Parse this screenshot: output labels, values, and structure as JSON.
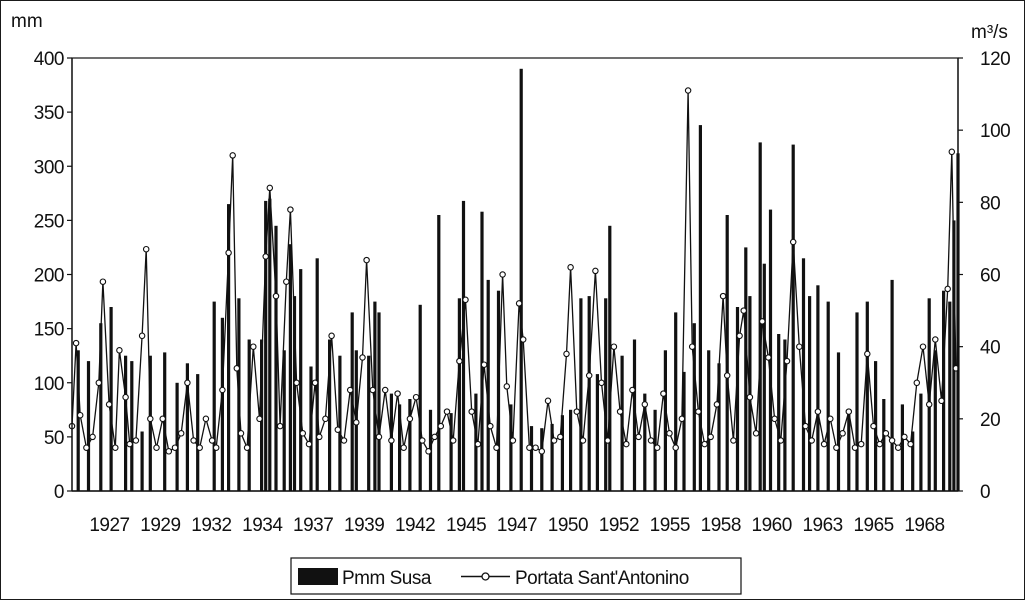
{
  "chart_data": {
    "type": "bar+line",
    "left_axis": {
      "unit": "mm",
      "min": 0,
      "max": 400,
      "ticks": [
        0,
        50,
        100,
        150,
        200,
        250,
        300,
        350,
        400
      ]
    },
    "right_axis": {
      "unit": "m³/s",
      "min": 0,
      "max": 120,
      "ticks": [
        0,
        20,
        40,
        60,
        80,
        100,
        120
      ]
    },
    "x_axis": {
      "min": 1927,
      "max": 1970,
      "tick_labels": [
        "1927",
        "1929",
        "1932",
        "1934",
        "1937",
        "1939",
        "1942",
        "1945",
        "1947",
        "1950",
        "1952",
        "1955",
        "1958",
        "1960",
        "1963",
        "1965",
        "1968"
      ]
    },
    "legend": {
      "position": "bottom"
    },
    "series": [
      {
        "name": "Pmm Susa",
        "axis": "left",
        "style": "bars",
        "color": "#111111",
        "points": [
          [
            1927.3,
            130
          ],
          [
            1927.8,
            120
          ],
          [
            1928.4,
            155
          ],
          [
            1928.9,
            170
          ],
          [
            1929.6,
            125
          ],
          [
            1929.9,
            120
          ],
          [
            1930.4,
            55
          ],
          [
            1930.8,
            125
          ],
          [
            1931.5,
            128
          ],
          [
            1932.1,
            100
          ],
          [
            1932.6,
            118
          ],
          [
            1933.1,
            108
          ],
          [
            1933.9,
            175
          ],
          [
            1934.3,
            160
          ],
          [
            1934.6,
            265
          ],
          [
            1935.1,
            178
          ],
          [
            1935.6,
            140
          ],
          [
            1936.2,
            140
          ],
          [
            1936.4,
            268
          ],
          [
            1936.6,
            270
          ],
          [
            1936.9,
            245
          ],
          [
            1937.3,
            130
          ],
          [
            1937.6,
            228
          ],
          [
            1937.8,
            180
          ],
          [
            1938.1,
            205
          ],
          [
            1938.6,
            115
          ],
          [
            1938.9,
            215
          ],
          [
            1939.5,
            140
          ],
          [
            1940.0,
            125
          ],
          [
            1940.6,
            165
          ],
          [
            1940.8,
            130
          ],
          [
            1941.4,
            125
          ],
          [
            1941.7,
            175
          ],
          [
            1941.9,
            165
          ],
          [
            1942.5,
            90
          ],
          [
            1942.9,
            80
          ],
          [
            1943.4,
            85
          ],
          [
            1943.9,
            172
          ],
          [
            1944.4,
            75
          ],
          [
            1944.8,
            255
          ],
          [
            1945.4,
            72
          ],
          [
            1945.8,
            178
          ],
          [
            1946.0,
            268
          ],
          [
            1946.6,
            90
          ],
          [
            1946.9,
            258
          ],
          [
            1947.2,
            195
          ],
          [
            1947.7,
            185
          ],
          [
            1948.3,
            80
          ],
          [
            1948.8,
            390
          ],
          [
            1949.3,
            60
          ],
          [
            1949.8,
            58
          ],
          [
            1950.3,
            62
          ],
          [
            1950.8,
            70
          ],
          [
            1951.2,
            75
          ],
          [
            1951.7,
            178
          ],
          [
            1952.1,
            180
          ],
          [
            1952.5,
            108
          ],
          [
            1952.9,
            178
          ],
          [
            1953.1,
            245
          ],
          [
            1953.7,
            125
          ],
          [
            1954.3,
            140
          ],
          [
            1954.8,
            90
          ],
          [
            1955.3,
            75
          ],
          [
            1955.8,
            130
          ],
          [
            1956.3,
            165
          ],
          [
            1956.7,
            110
          ],
          [
            1957.2,
            155
          ],
          [
            1957.5,
            338
          ],
          [
            1957.9,
            130
          ],
          [
            1958.4,
            118
          ],
          [
            1958.8,
            255
          ],
          [
            1959.3,
            170
          ],
          [
            1959.7,
            225
          ],
          [
            1959.9,
            180
          ],
          [
            1960.4,
            322
          ],
          [
            1960.6,
            210
          ],
          [
            1960.9,
            260
          ],
          [
            1961.3,
            145
          ],
          [
            1961.6,
            140
          ],
          [
            1962.0,
            320
          ],
          [
            1962.5,
            215
          ],
          [
            1962.8,
            180
          ],
          [
            1963.2,
            190
          ],
          [
            1963.7,
            175
          ],
          [
            1964.2,
            128
          ],
          [
            1964.7,
            72
          ],
          [
            1965.1,
            165
          ],
          [
            1965.6,
            175
          ],
          [
            1966.0,
            120
          ],
          [
            1966.4,
            85
          ],
          [
            1966.8,
            195
          ],
          [
            1967.3,
            80
          ],
          [
            1967.8,
            55
          ],
          [
            1968.2,
            90
          ],
          [
            1968.6,
            178
          ],
          [
            1968.9,
            130
          ],
          [
            1969.3,
            185
          ],
          [
            1969.6,
            175
          ],
          [
            1969.8,
            250
          ],
          [
            1970.0,
            312
          ]
        ]
      },
      {
        "name": "Portata Sant'Antonino",
        "axis": "right",
        "style": "line-with-circles",
        "color": "#111111",
        "points": [
          [
            1927.0,
            18
          ],
          [
            1927.2,
            41
          ],
          [
            1927.4,
            21
          ],
          [
            1927.7,
            12
          ],
          [
            1928.0,
            15
          ],
          [
            1928.3,
            30
          ],
          [
            1928.5,
            58
          ],
          [
            1928.8,
            24
          ],
          [
            1929.1,
            12
          ],
          [
            1929.3,
            39
          ],
          [
            1929.6,
            26
          ],
          [
            1929.8,
            13
          ],
          [
            1930.1,
            14
          ],
          [
            1930.4,
            43
          ],
          [
            1930.6,
            67
          ],
          [
            1930.8,
            20
          ],
          [
            1931.1,
            12
          ],
          [
            1931.4,
            20
          ],
          [
            1931.7,
            11
          ],
          [
            1932.0,
            12
          ],
          [
            1932.3,
            16
          ],
          [
            1932.6,
            30
          ],
          [
            1932.9,
            14
          ],
          [
            1933.2,
            12
          ],
          [
            1933.5,
            20
          ],
          [
            1933.8,
            14
          ],
          [
            1934.0,
            12
          ],
          [
            1934.3,
            28
          ],
          [
            1934.6,
            66
          ],
          [
            1934.8,
            93
          ],
          [
            1935.0,
            34
          ],
          [
            1935.2,
            16
          ],
          [
            1935.5,
            12
          ],
          [
            1935.8,
            40
          ],
          [
            1936.1,
            20
          ],
          [
            1936.4,
            65
          ],
          [
            1936.6,
            84
          ],
          [
            1936.9,
            54
          ],
          [
            1937.1,
            18
          ],
          [
            1937.4,
            58
          ],
          [
            1937.6,
            78
          ],
          [
            1937.9,
            30
          ],
          [
            1938.2,
            16
          ],
          [
            1938.5,
            13
          ],
          [
            1938.8,
            30
          ],
          [
            1939.0,
            15
          ],
          [
            1939.3,
            20
          ],
          [
            1939.6,
            43
          ],
          [
            1939.9,
            17
          ],
          [
            1940.2,
            14
          ],
          [
            1940.5,
            28
          ],
          [
            1940.8,
            19
          ],
          [
            1941.1,
            37
          ],
          [
            1941.3,
            64
          ],
          [
            1941.6,
            28
          ],
          [
            1941.9,
            15
          ],
          [
            1942.2,
            28
          ],
          [
            1942.5,
            14
          ],
          [
            1942.8,
            27
          ],
          [
            1943.1,
            12
          ],
          [
            1943.4,
            20
          ],
          [
            1943.7,
            26
          ],
          [
            1944.0,
            14
          ],
          [
            1944.3,
            11
          ],
          [
            1944.6,
            15
          ],
          [
            1944.9,
            18
          ],
          [
            1945.2,
            22
          ],
          [
            1945.5,
            14
          ],
          [
            1945.8,
            36
          ],
          [
            1946.1,
            53
          ],
          [
            1946.4,
            22
          ],
          [
            1946.7,
            13
          ],
          [
            1947.0,
            35
          ],
          [
            1947.3,
            18
          ],
          [
            1947.6,
            12
          ],
          [
            1947.9,
            60
          ],
          [
            1948.1,
            29
          ],
          [
            1948.4,
            14
          ],
          [
            1948.7,
            52
          ],
          [
            1948.9,
            42
          ],
          [
            1949.2,
            12
          ],
          [
            1949.5,
            12
          ],
          [
            1949.8,
            11
          ],
          [
            1950.1,
            25
          ],
          [
            1950.4,
            14
          ],
          [
            1950.7,
            15
          ],
          [
            1951.0,
            38
          ],
          [
            1951.2,
            62
          ],
          [
            1951.5,
            22
          ],
          [
            1951.8,
            14
          ],
          [
            1952.1,
            32
          ],
          [
            1952.4,
            61
          ],
          [
            1952.7,
            30
          ],
          [
            1953.0,
            14
          ],
          [
            1953.3,
            40
          ],
          [
            1953.6,
            22
          ],
          [
            1953.9,
            13
          ],
          [
            1954.2,
            28
          ],
          [
            1954.5,
            15
          ],
          [
            1954.8,
            24
          ],
          [
            1955.1,
            14
          ],
          [
            1955.4,
            12
          ],
          [
            1955.7,
            27
          ],
          [
            1956.0,
            16
          ],
          [
            1956.3,
            12
          ],
          [
            1956.6,
            20
          ],
          [
            1956.9,
            111
          ],
          [
            1957.1,
            40
          ],
          [
            1957.4,
            22
          ],
          [
            1957.7,
            13
          ],
          [
            1958.0,
            15
          ],
          [
            1958.3,
            24
          ],
          [
            1958.6,
            54
          ],
          [
            1958.8,
            32
          ],
          [
            1959.1,
            14
          ],
          [
            1959.4,
            43
          ],
          [
            1959.6,
            50
          ],
          [
            1959.9,
            26
          ],
          [
            1960.2,
            16
          ],
          [
            1960.5,
            47
          ],
          [
            1960.8,
            37
          ],
          [
            1961.1,
            20
          ],
          [
            1961.4,
            14
          ],
          [
            1961.7,
            36
          ],
          [
            1962.0,
            69
          ],
          [
            1962.3,
            40
          ],
          [
            1962.6,
            18
          ],
          [
            1962.9,
            14
          ],
          [
            1963.2,
            22
          ],
          [
            1963.5,
            13
          ],
          [
            1963.8,
            20
          ],
          [
            1964.1,
            12
          ],
          [
            1964.4,
            16
          ],
          [
            1964.7,
            22
          ],
          [
            1965.0,
            12
          ],
          [
            1965.3,
            13
          ],
          [
            1965.6,
            38
          ],
          [
            1965.9,
            18
          ],
          [
            1966.2,
            13
          ],
          [
            1966.5,
            16
          ],
          [
            1966.8,
            14
          ],
          [
            1967.1,
            12
          ],
          [
            1967.4,
            15
          ],
          [
            1967.7,
            13
          ],
          [
            1968.0,
            30
          ],
          [
            1968.3,
            40
          ],
          [
            1968.6,
            24
          ],
          [
            1968.9,
            42
          ],
          [
            1969.2,
            25
          ],
          [
            1969.5,
            56
          ],
          [
            1969.7,
            94
          ],
          [
            1969.9,
            34
          ]
        ]
      }
    ]
  }
}
